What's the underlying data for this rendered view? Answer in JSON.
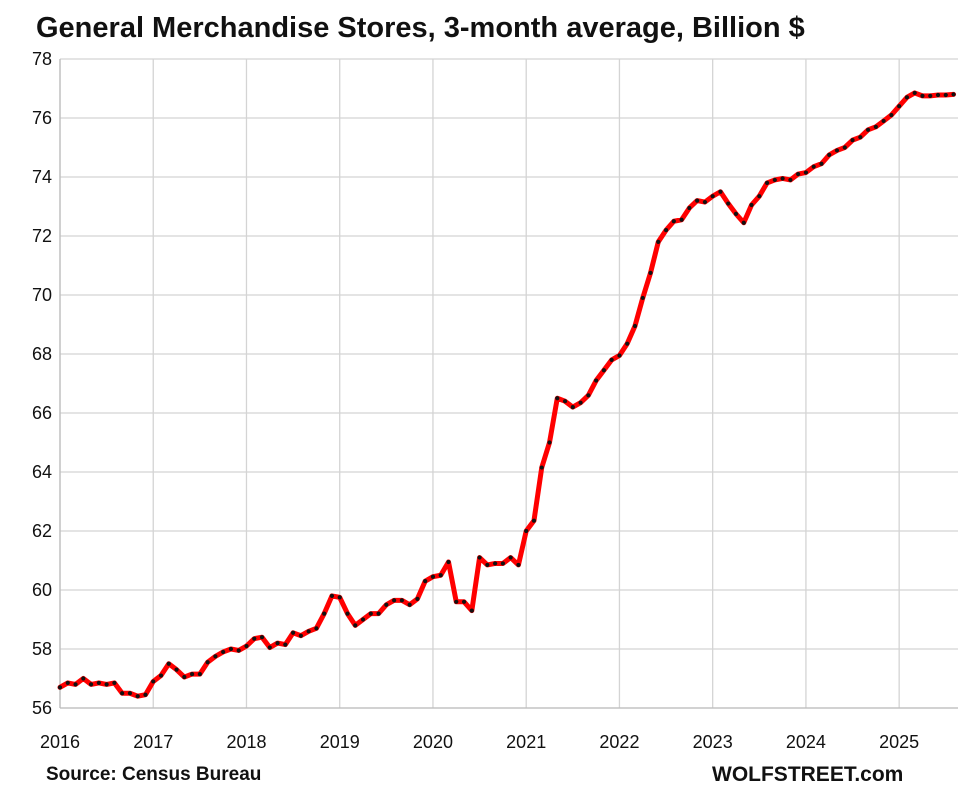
{
  "chart_data": {
    "type": "line",
    "title": "General Merchandise Stores, 3-month average, Billion $",
    "x_tick_labels": [
      "2016",
      "2017",
      "2018",
      "2019",
      "2020",
      "2021",
      "2022",
      "2023",
      "2024",
      "2025"
    ],
    "y_tick_labels": [
      "56",
      "58",
      "60",
      "62",
      "64",
      "66",
      "68",
      "70",
      "72",
      "74",
      "76",
      "78"
    ],
    "ylim": [
      56,
      78
    ],
    "xlim": [
      "2016-01",
      "2025-08"
    ],
    "grid": true,
    "legend": "none",
    "series": [
      {
        "color": "#ff0000",
        "marker_color": "#111111",
        "x": [
          "2016-01",
          "2016-02",
          "2016-03",
          "2016-04",
          "2016-05",
          "2016-06",
          "2016-07",
          "2016-08",
          "2016-09",
          "2016-10",
          "2016-11",
          "2016-12",
          "2017-01",
          "2017-02",
          "2017-03",
          "2017-04",
          "2017-05",
          "2017-06",
          "2017-07",
          "2017-08",
          "2017-09",
          "2017-10",
          "2017-11",
          "2017-12",
          "2018-01",
          "2018-02",
          "2018-03",
          "2018-04",
          "2018-05",
          "2018-06",
          "2018-07",
          "2018-08",
          "2018-09",
          "2018-10",
          "2018-11",
          "2018-12",
          "2019-01",
          "2019-02",
          "2019-03",
          "2019-04",
          "2019-05",
          "2019-06",
          "2019-07",
          "2019-08",
          "2019-09",
          "2019-10",
          "2019-11",
          "2019-12",
          "2020-01",
          "2020-02",
          "2020-03",
          "2020-04",
          "2020-05",
          "2020-06",
          "2020-07",
          "2020-08",
          "2020-09",
          "2020-10",
          "2020-11",
          "2020-12",
          "2021-01",
          "2021-02",
          "2021-03",
          "2021-04",
          "2021-05",
          "2021-06",
          "2021-07",
          "2021-08",
          "2021-09",
          "2021-10",
          "2021-11",
          "2021-12",
          "2022-01",
          "2022-02",
          "2022-03",
          "2022-04",
          "2022-05",
          "2022-06",
          "2022-07",
          "2022-08",
          "2022-09",
          "2022-10",
          "2022-11",
          "2022-12",
          "2023-01",
          "2023-02",
          "2023-03",
          "2023-04",
          "2023-05",
          "2023-06",
          "2023-07",
          "2023-08",
          "2023-09",
          "2023-10",
          "2023-11",
          "2023-12",
          "2024-01",
          "2024-02",
          "2024-03",
          "2024-04",
          "2024-05",
          "2024-06",
          "2024-07",
          "2024-08",
          "2024-09",
          "2024-10",
          "2024-11",
          "2024-12",
          "2025-01",
          "2025-02",
          "2025-03",
          "2025-04",
          "2025-05",
          "2025-06",
          "2025-07",
          "2025-08"
        ],
        "values": [
          56.7,
          56.85,
          56.8,
          57.0,
          56.8,
          56.85,
          56.8,
          56.85,
          56.5,
          56.5,
          56.4,
          56.45,
          56.9,
          57.1,
          57.5,
          57.3,
          57.05,
          57.15,
          57.15,
          57.55,
          57.75,
          57.9,
          58.0,
          57.95,
          58.1,
          58.35,
          58.4,
          58.05,
          58.2,
          58.15,
          58.55,
          58.45,
          58.6,
          58.7,
          59.2,
          59.8,
          59.75,
          59.2,
          58.8,
          59.0,
          59.2,
          59.2,
          59.5,
          59.65,
          59.65,
          59.5,
          59.7,
          60.3,
          60.45,
          60.5,
          60.95,
          59.6,
          59.6,
          59.3,
          61.1,
          60.85,
          60.9,
          60.9,
          61.1,
          60.85,
          62.0,
          62.35,
          64.15,
          65.0,
          66.5,
          66.4,
          66.2,
          66.35,
          66.6,
          67.1,
          67.45,
          67.8,
          67.95,
          68.35,
          68.95,
          69.9,
          70.75,
          71.8,
          72.2,
          72.5,
          72.55,
          72.95,
          73.2,
          73.15,
          73.35,
          73.5,
          73.1,
          72.75,
          72.45,
          73.05,
          73.35,
          73.8,
          73.9,
          73.95,
          73.9,
          74.1,
          74.15,
          74.35,
          74.45,
          74.75,
          74.9,
          75.0,
          75.25,
          75.35,
          75.6,
          75.7,
          75.9,
          76.1,
          76.4,
          76.7,
          76.85,
          76.75,
          76.75,
          76.78,
          76.78,
          76.8
        ]
      }
    ]
  },
  "footer": {
    "source": "Source: Census Bureau",
    "brand": "WOLFSTREET.com"
  }
}
